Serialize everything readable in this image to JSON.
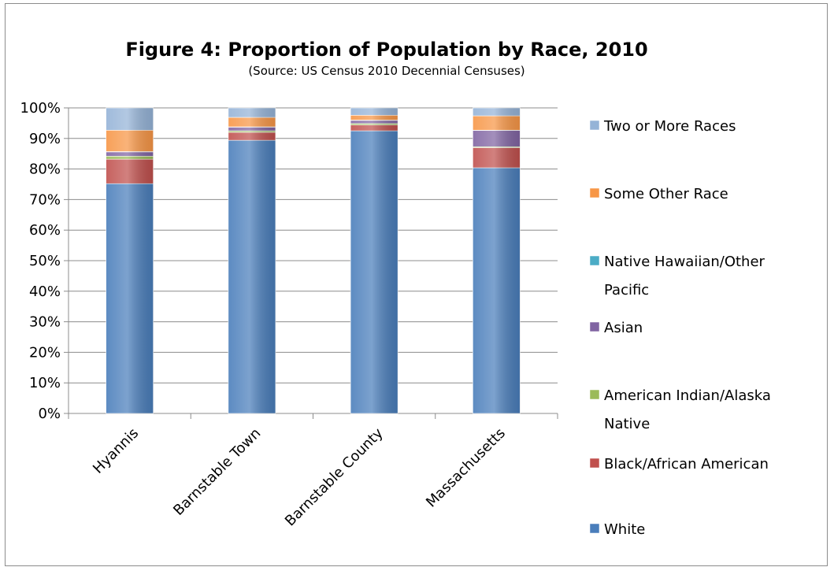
{
  "chart_data": {
    "type": "bar",
    "stacked": true,
    "title": "Figure 4:  Proportion of Population by Race, 2010",
    "subtitle": "(Source:  US Census 2010 Decennial Censuses)",
    "xlabel": "",
    "ylabel": "",
    "ylim": [
      0,
      100
    ],
    "y_ticks": [
      "0%",
      "10%",
      "20%",
      "30%",
      "40%",
      "50%",
      "60%",
      "70%",
      "80%",
      "90%",
      "100%"
    ],
    "grid": true,
    "legend_position": "right",
    "categories": [
      "Hyannis",
      "Barnstable Town",
      "Barnstable County",
      "Massachusetts"
    ],
    "series": [
      {
        "name": "White",
        "color": "#4a7ebb",
        "values": [
          75.2,
          89.4,
          92.5,
          80.4
        ]
      },
      {
        "name": "Black/African American",
        "color": "#c0504d",
        "values": [
          8.0,
          2.6,
          1.9,
          6.6
        ]
      },
      {
        "name": "American Indian/Alaska Native",
        "color": "#9bbb59",
        "values": [
          1.0,
          0.5,
          0.5,
          0.3
        ]
      },
      {
        "name": "Asian",
        "color": "#8064a2",
        "values": [
          1.4,
          1.2,
          1.0,
          5.3
        ]
      },
      {
        "name": "Native Hawaiian/Other Pacific",
        "color": "#4bacc6",
        "values": [
          0.1,
          0.1,
          0.1,
          0.1
        ]
      },
      {
        "name": "Some Other Race",
        "color": "#f79646",
        "values": [
          7.0,
          3.1,
          1.6,
          4.7
        ]
      },
      {
        "name": "Two or More Races",
        "color": "#95b3d7",
        "values": [
          7.3,
          3.1,
          2.4,
          2.6
        ]
      }
    ],
    "legend_order": [
      "Two or More Races",
      "Some Other Race",
      "Native Hawaiian/Other Pacific",
      "Asian",
      "American Indian/Alaska Native",
      "Black/African American",
      "White"
    ],
    "legend_labels": [
      [
        "Two or More Races"
      ],
      [
        "Some Other Race"
      ],
      [
        "Native Hawaiian/Other",
        "Pacific"
      ],
      [
        "Asian"
      ],
      [
        "American Indian/Alaska",
        "Native"
      ],
      [
        "Black/African American"
      ],
      [
        "White"
      ]
    ]
  }
}
